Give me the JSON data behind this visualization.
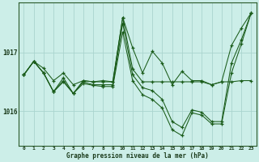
{
  "title": "Graphe pression niveau de la mer (hPa)",
  "bg_color": "#cceee8",
  "grid_color": "#aad4ce",
  "line_color": "#1a5c1a",
  "x_labels": [
    "0",
    "1",
    "2",
    "3",
    "4",
    "5",
    "6",
    "7",
    "8",
    "9",
    "10",
    "11",
    "12",
    "13",
    "14",
    "15",
    "16",
    "17",
    "18",
    "19",
    "20",
    "21",
    "22",
    "23"
  ],
  "y_ticks": [
    1016,
    1017
  ],
  "ylim": [
    1015.4,
    1017.85
  ],
  "series1": [
    1016.62,
    1016.85,
    1016.73,
    1016.52,
    1016.65,
    1016.45,
    1016.52,
    1016.5,
    1016.5,
    1016.5,
    1017.6,
    1016.72,
    1016.5,
    1016.5,
    1016.5,
    1016.5,
    1016.5,
    1016.5,
    1016.5,
    1016.45,
    1016.5,
    1017.12,
    1017.42,
    1017.68
  ],
  "series2": [
    1016.62,
    1016.85,
    1016.65,
    1016.33,
    1016.52,
    1016.3,
    1016.47,
    1016.44,
    1016.42,
    1016.42,
    1017.35,
    1016.52,
    1016.28,
    1016.2,
    1016.05,
    1015.68,
    1015.58,
    1015.97,
    1015.93,
    1015.78,
    1015.78,
    1016.65,
    1017.15,
    1017.68
  ],
  "series3": [
    1016.62,
    1016.85,
    1016.65,
    1016.33,
    1016.57,
    1016.3,
    1016.52,
    1016.5,
    1016.52,
    1016.5,
    1017.6,
    1017.08,
    1016.65,
    1017.02,
    1016.82,
    1016.45,
    1016.68,
    1016.52,
    1016.52,
    1016.45,
    1016.5,
    1016.5,
    1016.52,
    1016.52
  ],
  "series4": [
    1016.62,
    1016.85,
    1016.65,
    1016.33,
    1016.5,
    1016.3,
    1016.5,
    1016.45,
    1016.45,
    1016.45,
    1017.5,
    1016.62,
    1016.4,
    1016.35,
    1016.2,
    1015.82,
    1015.72,
    1016.02,
    1015.98,
    1015.82,
    1015.82,
    1016.82,
    1017.22,
    1017.68
  ]
}
